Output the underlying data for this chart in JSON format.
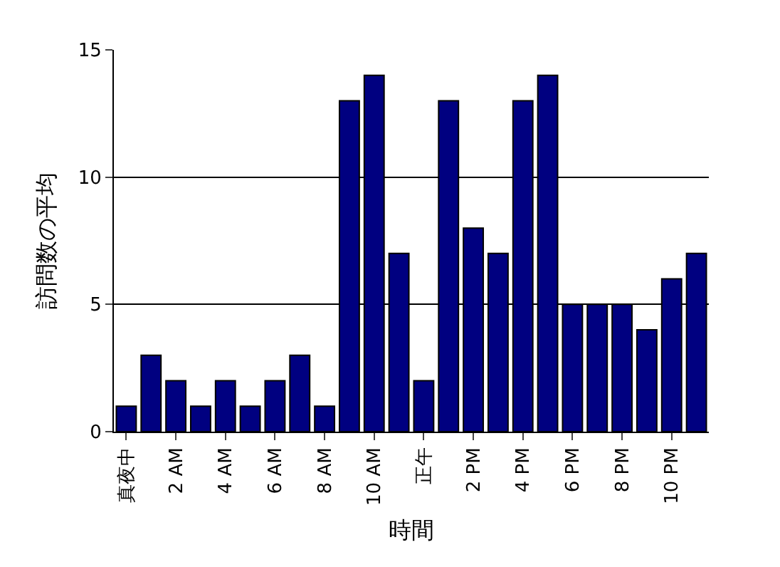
{
  "chart_data": {
    "type": "bar",
    "xlabel": "時間",
    "ylabel": "訪問数の平均",
    "categories": [
      "真夜中",
      null,
      "2 AM",
      null,
      "4 AM",
      null,
      "6 AM",
      null,
      "8 AM",
      null,
      "10 AM",
      null,
      "正午",
      null,
      "2 PM",
      null,
      "4 PM",
      null,
      "6 PM",
      null,
      "8 PM",
      null,
      "10 PM",
      null
    ],
    "values": [
      1,
      3,
      2,
      1,
      2,
      1,
      2,
      3,
      1,
      13,
      14,
      7,
      2,
      13,
      8,
      7,
      13,
      14,
      5,
      5,
      5,
      4,
      6,
      7
    ],
    "color": "#000080",
    "ylim": [
      0,
      15
    ],
    "yticks": [
      0,
      5,
      10,
      15
    ],
    "grid": "y",
    "legend": false
  }
}
